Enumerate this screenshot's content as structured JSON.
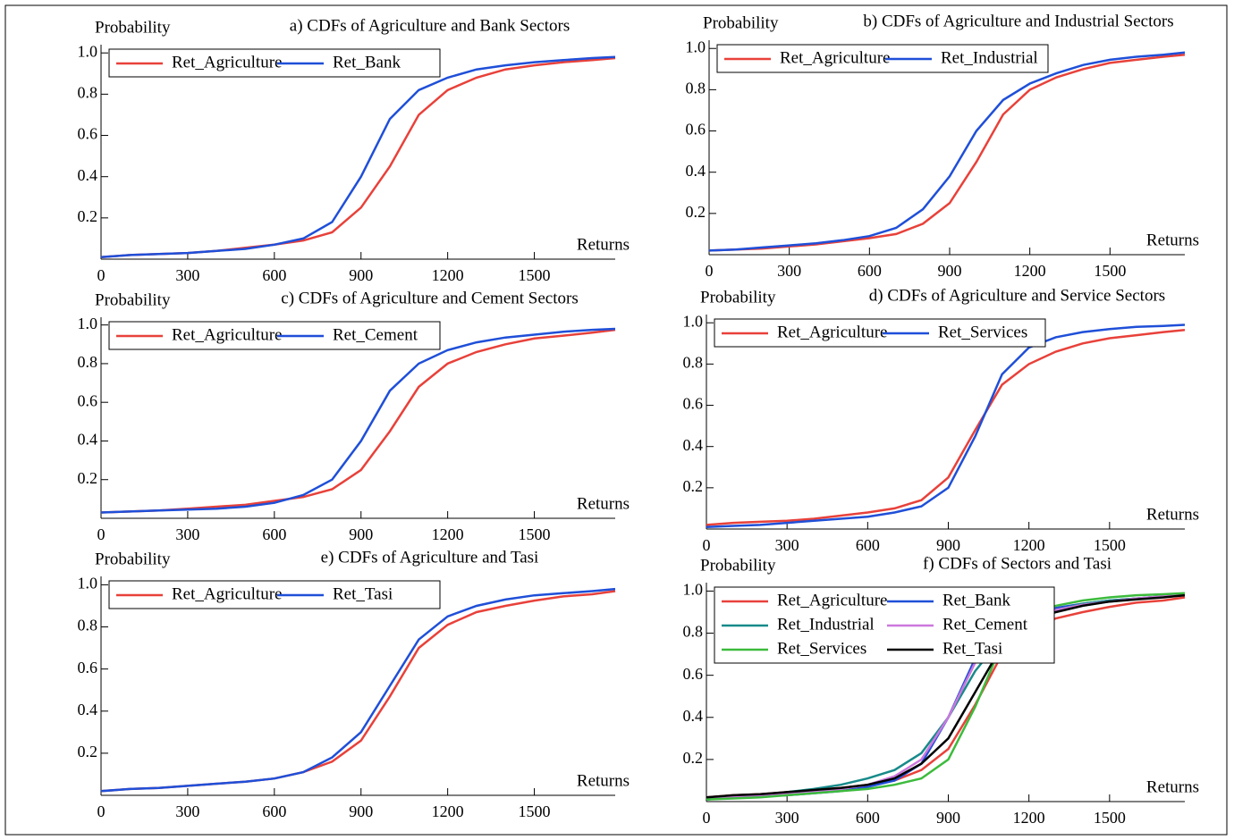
{
  "chart_data": [
    {
      "type": "line",
      "title": "a) CDFs of Agriculture and Bank Sectors",
      "y_label": "Probability",
      "x_label": "Returns",
      "x": [
        0,
        100,
        200,
        300,
        400,
        500,
        600,
        700,
        800,
        900,
        1000,
        1100,
        1200,
        1300,
        1400,
        1500,
        1600,
        1700,
        1780
      ],
      "xlim": [
        0,
        1780
      ],
      "xticks": [
        0,
        300,
        600,
        900,
        1200,
        1500
      ],
      "ylim": [
        0,
        1.04
      ],
      "yticks": [
        0.2,
        0.4,
        0.6,
        0.8,
        {
          "value": 1,
          "label": "1.0"
        }
      ],
      "legend": "upper left",
      "series": [
        {
          "name": "Ret_Agriculture",
          "color": "#e8413a",
          "values": [
            0.01,
            0.02,
            0.025,
            0.03,
            0.04,
            0.055,
            0.07,
            0.09,
            0.13,
            0.25,
            0.45,
            0.7,
            0.82,
            0.88,
            0.92,
            0.94,
            0.955,
            0.965,
            0.975
          ]
        },
        {
          "name": "Ret_Bank",
          "color": "#1f4fd8",
          "values": [
            0.01,
            0.02,
            0.025,
            0.03,
            0.04,
            0.05,
            0.07,
            0.1,
            0.18,
            0.4,
            0.68,
            0.82,
            0.88,
            0.92,
            0.94,
            0.955,
            0.965,
            0.975,
            0.98
          ]
        }
      ]
    },
    {
      "type": "line",
      "title": "b) CDFs of Agriculture and Industrial Sectors",
      "y_label": "Probability",
      "x_label": "Returns",
      "x": [
        0,
        100,
        200,
        300,
        400,
        500,
        600,
        700,
        800,
        900,
        1000,
        1100,
        1200,
        1300,
        1400,
        1500,
        1600,
        1700,
        1780
      ],
      "xlim": [
        0,
        1780
      ],
      "xticks": [
        0,
        300,
        600,
        900,
        1200,
        1500
      ],
      "ylim": [
        0,
        1.04
      ],
      "yticks": [
        0.2,
        0.4,
        0.6,
        0.8,
        {
          "value": 1,
          "label": "1.0"
        }
      ],
      "legend": "upper left",
      "series": [
        {
          "name": "Ret_Agriculture",
          "color": "#e8413a",
          "values": [
            0.02,
            0.025,
            0.03,
            0.04,
            0.05,
            0.065,
            0.08,
            0.1,
            0.15,
            0.25,
            0.45,
            0.68,
            0.8,
            0.86,
            0.9,
            0.93,
            0.945,
            0.96,
            0.97
          ]
        },
        {
          "name": "Ret_Industrial",
          "color": "#1f4fd8",
          "values": [
            0.02,
            0.025,
            0.035,
            0.045,
            0.055,
            0.07,
            0.09,
            0.13,
            0.22,
            0.38,
            0.6,
            0.75,
            0.83,
            0.88,
            0.92,
            0.945,
            0.96,
            0.97,
            0.98
          ]
        }
      ]
    },
    {
      "type": "line",
      "title": "c) CDFs of Agriculture and Cement Sectors",
      "y_label": "Probability",
      "x_label": "Returns",
      "x": [
        0,
        100,
        200,
        300,
        400,
        500,
        600,
        700,
        800,
        900,
        1000,
        1100,
        1200,
        1300,
        1400,
        1500,
        1600,
        1700,
        1780
      ],
      "xlim": [
        0,
        1780
      ],
      "xticks": [
        0,
        300,
        600,
        900,
        1200,
        1500
      ],
      "ylim": [
        0,
        1.04
      ],
      "yticks": [
        0.2,
        0.4,
        0.6,
        0.8,
        {
          "value": 1,
          "label": "1.0"
        }
      ],
      "legend": "upper left",
      "series": [
        {
          "name": "Ret_Agriculture",
          "color": "#e8413a",
          "values": [
            0.03,
            0.035,
            0.04,
            0.05,
            0.06,
            0.07,
            0.09,
            0.11,
            0.15,
            0.25,
            0.45,
            0.68,
            0.8,
            0.86,
            0.9,
            0.93,
            0.945,
            0.96,
            0.975
          ]
        },
        {
          "name": "Ret_Cement",
          "color": "#1f4fd8",
          "values": [
            0.03,
            0.035,
            0.04,
            0.045,
            0.05,
            0.06,
            0.08,
            0.12,
            0.2,
            0.4,
            0.66,
            0.8,
            0.87,
            0.91,
            0.935,
            0.95,
            0.965,
            0.975,
            0.98
          ]
        }
      ]
    },
    {
      "type": "line",
      "title": "d) CDFs of Agriculture and Service Sectors",
      "y_label": "Probability",
      "x_label": "Returns",
      "x": [
        0,
        100,
        200,
        300,
        400,
        500,
        600,
        700,
        800,
        900,
        1000,
        1100,
        1200,
        1300,
        1400,
        1500,
        1600,
        1700,
        1780
      ],
      "xlim": [
        0,
        1780
      ],
      "xticks": [
        0,
        300,
        600,
        900,
        1200,
        1500
      ],
      "ylim": [
        0,
        1.04
      ],
      "yticks": [
        0.2,
        0.4,
        0.6,
        0.8,
        {
          "value": 1,
          "label": "1.0"
        }
      ],
      "legend": "upper left",
      "series": [
        {
          "name": "Ret_Agriculture",
          "color": "#e8413a",
          "values": [
            0.02,
            0.03,
            0.035,
            0.04,
            0.05,
            0.065,
            0.08,
            0.1,
            0.14,
            0.25,
            0.48,
            0.7,
            0.8,
            0.86,
            0.9,
            0.925,
            0.94,
            0.955,
            0.965
          ]
        },
        {
          "name": "Ret_Services",
          "color": "#1f4fd8",
          "values": [
            0.01,
            0.015,
            0.02,
            0.03,
            0.04,
            0.05,
            0.06,
            0.08,
            0.11,
            0.2,
            0.45,
            0.75,
            0.88,
            0.93,
            0.955,
            0.97,
            0.98,
            0.985,
            0.99
          ]
        }
      ]
    },
    {
      "type": "line",
      "title": "e) CDFs of Agriculture and Tasi",
      "y_label": "Probability",
      "x_label": "Returns",
      "x": [
        0,
        100,
        200,
        300,
        400,
        500,
        600,
        700,
        800,
        900,
        1000,
        1100,
        1200,
        1300,
        1400,
        1500,
        1600,
        1700,
        1780
      ],
      "xlim": [
        0,
        1780
      ],
      "xticks": [
        0,
        300,
        600,
        900,
        1200,
        1500
      ],
      "ylim": [
        0,
        1.04
      ],
      "yticks": [
        0.2,
        0.4,
        0.6,
        0.8,
        {
          "value": 1,
          "label": "1.0"
        }
      ],
      "legend": "upper left",
      "series": [
        {
          "name": "Ret_Agriculture",
          "color": "#e8413a",
          "values": [
            0.02,
            0.03,
            0.035,
            0.045,
            0.055,
            0.065,
            0.08,
            0.11,
            0.16,
            0.26,
            0.47,
            0.7,
            0.81,
            0.87,
            0.9,
            0.925,
            0.945,
            0.955,
            0.97
          ]
        },
        {
          "name": "Ret_Tasi",
          "color": "#1f4fd8",
          "values": [
            0.02,
            0.03,
            0.035,
            0.045,
            0.055,
            0.065,
            0.08,
            0.11,
            0.18,
            0.3,
            0.52,
            0.74,
            0.85,
            0.9,
            0.93,
            0.95,
            0.96,
            0.97,
            0.98
          ]
        }
      ]
    },
    {
      "type": "line",
      "title": "f) CDFs of Sectors and Tasi",
      "y_label": "Probability",
      "x_label": "Returns",
      "x": [
        0,
        100,
        200,
        300,
        400,
        500,
        600,
        700,
        800,
        900,
        1000,
        1100,
        1200,
        1300,
        1400,
        1500,
        1600,
        1700,
        1780
      ],
      "xlim": [
        0,
        1780
      ],
      "xticks": [
        0,
        300,
        600,
        900,
        1200,
        1500
      ],
      "ylim": [
        0,
        1.04
      ],
      "yticks": [
        0.2,
        0.4,
        0.6,
        0.8,
        {
          "value": 1,
          "label": "1.0"
        }
      ],
      "legend": "upper left",
      "series": [
        {
          "name": "Ret_Agriculture",
          "color": "#e8413a",
          "values": [
            0.02,
            0.03,
            0.035,
            0.045,
            0.055,
            0.065,
            0.08,
            0.1,
            0.15,
            0.25,
            0.46,
            0.7,
            0.81,
            0.87,
            0.9,
            0.925,
            0.945,
            0.955,
            0.97
          ]
        },
        {
          "name": "Ret_Bank",
          "color": "#1f4fd8",
          "values": [
            0.01,
            0.02,
            0.025,
            0.03,
            0.04,
            0.05,
            0.07,
            0.1,
            0.18,
            0.4,
            0.68,
            0.82,
            0.88,
            0.92,
            0.94,
            0.955,
            0.965,
            0.975,
            0.98
          ]
        },
        {
          "name": "Ret_Industrial",
          "color": "#178a8a",
          "values": [
            0.01,
            0.02,
            0.03,
            0.045,
            0.06,
            0.08,
            0.11,
            0.15,
            0.23,
            0.4,
            0.62,
            0.78,
            0.86,
            0.91,
            0.94,
            0.955,
            0.965,
            0.975,
            0.98
          ]
        },
        {
          "name": "Ret_Cement",
          "color": "#cc77dd",
          "values": [
            0.02,
            0.025,
            0.03,
            0.04,
            0.05,
            0.06,
            0.08,
            0.12,
            0.2,
            0.4,
            0.66,
            0.8,
            0.87,
            0.91,
            0.935,
            0.95,
            0.965,
            0.975,
            0.98
          ]
        },
        {
          "name": "Ret_Services",
          "color": "#3cbb3c",
          "values": [
            0.01,
            0.015,
            0.02,
            0.03,
            0.04,
            0.05,
            0.06,
            0.08,
            0.11,
            0.2,
            0.45,
            0.75,
            0.88,
            0.93,
            0.955,
            0.97,
            0.98,
            0.985,
            0.99
          ]
        },
        {
          "name": "Ret_Tasi",
          "color": "#000000",
          "values": [
            0.02,
            0.03,
            0.035,
            0.045,
            0.055,
            0.065,
            0.08,
            0.11,
            0.18,
            0.3,
            0.52,
            0.74,
            0.85,
            0.9,
            0.93,
            0.95,
            0.96,
            0.97,
            0.98
          ]
        }
      ]
    }
  ]
}
